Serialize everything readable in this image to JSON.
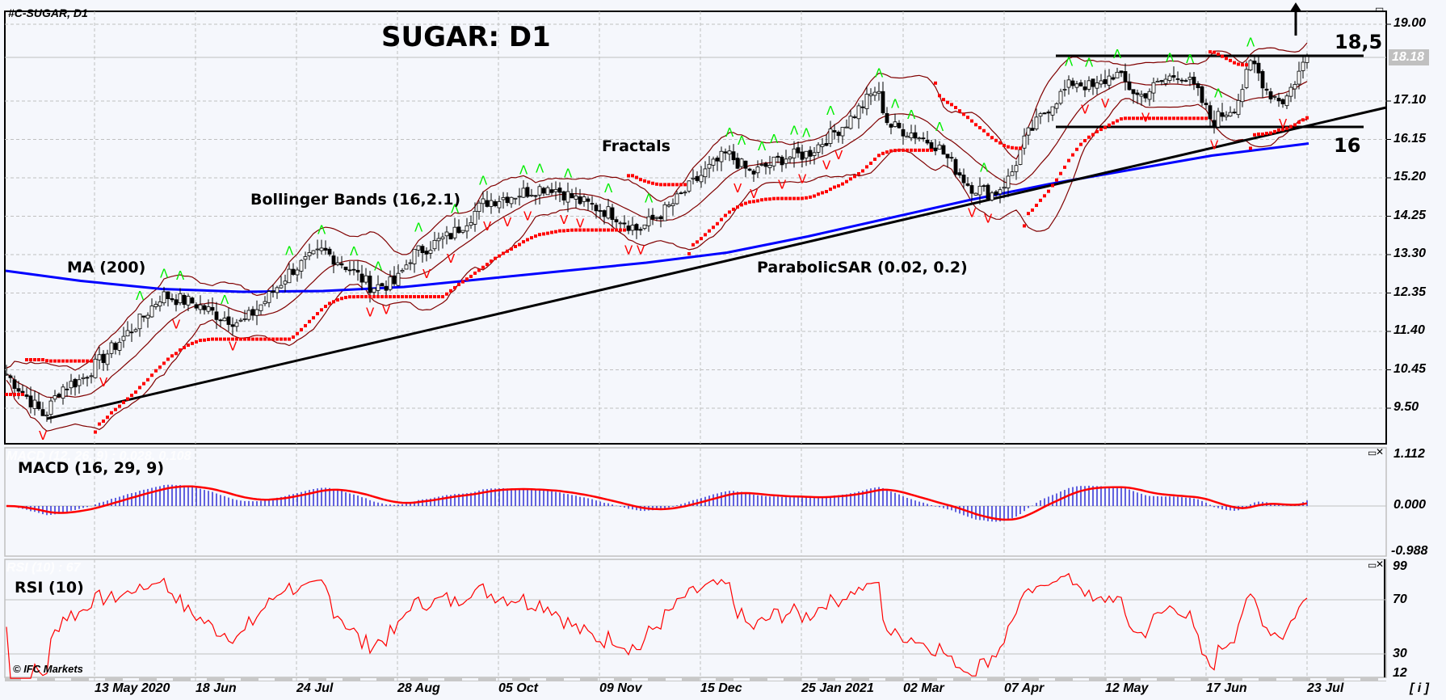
{
  "header": {
    "symbol": "#C-SUGAR, D1",
    "title": "SUGAR: D1"
  },
  "annotations": {
    "ma": "MA (200)",
    "bollinger": "Bollinger Bands (16,2.1)",
    "fractals": "Fractals",
    "sar": "ParabolicSAR (0.02, 0.2)",
    "resistance_label": "18,5",
    "support_label": "16",
    "copyright": "© IFC Markets",
    "info_button": "[ i ]"
  },
  "price_axis": {
    "ticks": [
      "19.00",
      "17.10",
      "16.15",
      "15.20",
      "14.25",
      "13.30",
      "12.35",
      "11.40",
      "10.45",
      "9.50"
    ],
    "current_price": "18.18"
  },
  "macd_panel": {
    "label": "MACD (16, 29, 9)",
    "ghost_label": "MACD (12, 26, 9) : 0.028, 0.108",
    "ticks": [
      "1.112",
      "0.000",
      "-0.988"
    ]
  },
  "rsi_panel": {
    "label": "RSI (10)",
    "ghost_label": "RSI (10) : 67",
    "ticks": [
      "99",
      "70",
      "30",
      "12"
    ]
  },
  "time_axis": {
    "labels": [
      "13 May 2020",
      "18 Jun",
      "24 Jul",
      "28 Aug",
      "05 Oct",
      "09 Nov",
      "15 Dec",
      "25 Jan 2021",
      "02 Mar",
      "07 Apr",
      "12 May",
      "17 Jun",
      "23 Jul"
    ]
  },
  "colors": {
    "background": "#f5f7fc",
    "ma": "#0000ff",
    "bollinger": "#800000",
    "sar": "#ff0000",
    "fractal_up": "#00ee00",
    "fractal_down": "#ff0000",
    "macd_hist": "#0000cc",
    "macd_signal": "#ff0000",
    "rsi": "#ff0000",
    "trendline": "#000000"
  },
  "chart_data": {
    "type": "line",
    "title": "SUGAR: D1",
    "instrument": "#C-SUGAR, D1",
    "xlabel": "",
    "ylabel": "",
    "ylim": [
      9.0,
      19.3
    ],
    "x_tick_labels": [
      "13 May 2020",
      "18 Jun",
      "24 Jul",
      "28 Aug",
      "05 Oct",
      "09 Nov",
      "15 Dec",
      "25 Jan 2021",
      "02 Mar",
      "07 Apr",
      "12 May",
      "17 Jun",
      "23 Jul"
    ],
    "y_tick_labels": [
      "9.50",
      "10.45",
      "11.40",
      "12.35",
      "13.30",
      "14.25",
      "15.20",
      "16.15",
      "17.10",
      "18.18",
      "19.00"
    ],
    "current_price": 18.18,
    "price_keypoints": {
      "x": [
        "Apr 2020",
        "early May 2020",
        "13 May 2020",
        "late May",
        "18 Jun",
        "early Jul",
        "24 Jul",
        "mid Aug",
        "28 Aug",
        "mid Sep",
        "05 Oct",
        "late Oct",
        "09 Nov",
        "late Nov",
        "15 Dec",
        "early Jan",
        "25 Jan 2021",
        "mid Feb",
        "02 Mar",
        "mid Mar",
        "07 Apr",
        "late Apr",
        "12 May",
        "late May",
        "17 Jun",
        "early Jul",
        "23 Jul"
      ],
      "close": [
        10.3,
        9.3,
        10.2,
        11.0,
        12.3,
        11.7,
        12.2,
        13.4,
        12.6,
        13.3,
        14.6,
        15.0,
        14.6,
        13.9,
        14.5,
        15.8,
        15.7,
        17.4,
        16.3,
        15.0,
        15.2,
        17.6,
        17.8,
        17.6,
        16.6,
        18.1,
        18.2
      ]
    },
    "levels": [
      {
        "name": "Resistance",
        "value": 18.5
      },
      {
        "name": "Support",
        "value": 16.0
      }
    ],
    "series": [
      {
        "name": "MA (200)",
        "values_approx": [
          12.9,
          12.5,
          12.3,
          12.2,
          12.3,
          12.5,
          12.8,
          13.1,
          13.4,
          14.0,
          14.6,
          15.1,
          15.6,
          16.1
        ]
      },
      {
        "name": "MACD (16, 29, 9) histogram/signal range",
        "ylim": [
          -0.988,
          1.112
        ]
      },
      {
        "name": "RSI (10)",
        "ylim": [
          12,
          99
        ],
        "levels": [
          30,
          70
        ],
        "last": 67
      }
    ],
    "indicators": [
      "MA (200)",
      "Bollinger Bands (16,2.1)",
      "Fractals",
      "ParabolicSAR (0.02, 0.2)",
      "MACD (16, 29, 9)",
      "RSI (10)"
    ],
    "trendline": {
      "from": {
        "date": "early May 2020",
        "price": 9.25
      },
      "to": {
        "date": "23 Jul 2021",
        "price": 17.0
      }
    },
    "arrow": "up"
  }
}
